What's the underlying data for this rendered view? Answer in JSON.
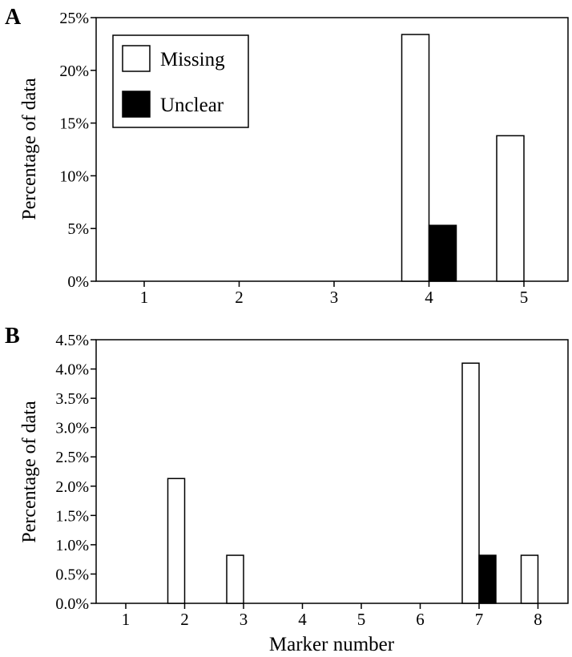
{
  "chart_data": [
    {
      "panel_label": "A",
      "type": "bar",
      "categories": [
        "1",
        "2",
        "3",
        "4",
        "5"
      ],
      "series": [
        {
          "name": "Missing",
          "values": [
            0,
            0,
            0,
            23.4,
            13.8
          ],
          "fill": "#ffffff"
        },
        {
          "name": "Unclear",
          "values": [
            0,
            0,
            0,
            5.3,
            0
          ],
          "fill": "#000000"
        }
      ],
      "ylabel": "Percentage of data",
      "xlabel": "",
      "ylim": [
        0,
        25
      ],
      "yticks": [
        "0%",
        "5%",
        "10%",
        "15%",
        "20%",
        "25%"
      ],
      "legend": "top-left",
      "grid": false
    },
    {
      "panel_label": "B",
      "type": "bar",
      "categories": [
        "1",
        "2",
        "3",
        "4",
        "5",
        "6",
        "7",
        "8"
      ],
      "series": [
        {
          "name": "Missing",
          "values": [
            0,
            2.13,
            0.82,
            0,
            0,
            0,
            4.1,
            0.82
          ],
          "fill": "#ffffff"
        },
        {
          "name": "Unclear",
          "values": [
            0,
            0,
            0,
            0,
            0,
            0,
            0.82,
            0
          ],
          "fill": "#000000"
        }
      ],
      "ylabel": "Percentage of data",
      "xlabel": "Marker number",
      "ylim": [
        0,
        4.5
      ],
      "yticks": [
        "0.0%",
        "0.5%",
        "1.0%",
        "1.5%",
        "2.0%",
        "2.5%",
        "3.0%",
        "3.5%",
        "4.0%",
        "4.5%"
      ],
      "legend": "none",
      "grid": false
    }
  ]
}
